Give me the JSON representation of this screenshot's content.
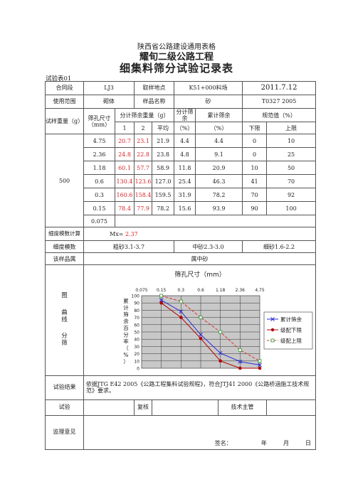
{
  "header": {
    "line1": "陕西省公路建设通用表格",
    "line2": "耀旬二级公路工程",
    "title": "细集料筛分试验记录表",
    "form_no": "试验表01"
  },
  "info": {
    "section_label": "合同段",
    "section_value": "LJ3",
    "location_label": "取样地点",
    "location_value": "K51+000料场",
    "date": "2011.7.12",
    "usage_label": "使用范围",
    "usage_value": "砌体",
    "sample_label": "样品名称",
    "sample_value": "砂",
    "standard": "T0327 2005"
  },
  "table_head": {
    "weight": "试样重量（g）",
    "sieve": "筛孔尺寸（mm）",
    "residue": "分计筛余重量（g）",
    "col1": "1",
    "col2": "2",
    "avg": "平均",
    "partial": "分计筛余",
    "partial_unit": "（%）",
    "cumulative": "累计筛余",
    "cumulative_unit": "（%）",
    "spec": "规范值（%）",
    "lower": "下限",
    "upper": "上限",
    "weight_value": "500"
  },
  "rows": [
    {
      "sieve": "4.75",
      "r1": "20.7",
      "r2": "23.1",
      "avg": "21.9",
      "partial": "4.4",
      "cum": "4.4",
      "lower": "0",
      "upper": "10"
    },
    {
      "sieve": "2.36",
      "r1": "24.8",
      "r2": "22.8",
      "avg": "23.8",
      "partial": "4.8",
      "cum": "9.1",
      "lower": "0",
      "upper": "25"
    },
    {
      "sieve": "1.18",
      "r1": "60.1",
      "r2": "57.7",
      "avg": "58.9",
      "partial": "11.8",
      "cum": "20.9",
      "lower": "10",
      "upper": "50"
    },
    {
      "sieve": "0.6",
      "r1": "130.4",
      "r2": "123.6",
      "avg": "127.0",
      "partial": "25.4",
      "cum": "46.3",
      "lower": "41",
      "upper": "70"
    },
    {
      "sieve": "0.3",
      "r1": "160.6",
      "r2": "158.4",
      "avg": "159.5",
      "partial": "31.9",
      "cum": "78.2",
      "lower": "70",
      "upper": "92"
    },
    {
      "sieve": "0.15",
      "r1": "78.4",
      "r2": "77.9",
      "avg": "78.2",
      "partial": "15.6",
      "cum": "93.9",
      "lower": "90",
      "upper": "100"
    }
  ],
  "last_sieve": "0.075",
  "fineness": {
    "label": "细度模数计算",
    "prefix": "Mx=",
    "value": "2.37"
  },
  "fineness_class": {
    "label": "细度模数",
    "coarse": "粗砂3.1-3.7",
    "medium": "中砂2.3-3.0",
    "fine": "细砂1.6-2.2"
  },
  "category": {
    "label": "该样品属",
    "value": "属中砂"
  },
  "chart_section_label": [
    "图",
    "曲",
    "线",
    "分",
    "筛"
  ],
  "chart_data": {
    "type": "line",
    "title": "筛孔尺寸（mm）",
    "categories": [
      "0.075",
      "0.15",
      "0.3",
      "0.6",
      "1.18",
      "2.36",
      "4.75"
    ],
    "ylabel": "累计筛余百分率（%）",
    "ylim": [
      0,
      100
    ],
    "yticks": [
      "100",
      "90",
      "80",
      "70",
      "60",
      "50",
      "40",
      "30",
      "20",
      "10",
      "0"
    ],
    "grid": true,
    "legend_position": "right",
    "series": [
      {
        "name": "累计筛余",
        "color": "#2b2bd6",
        "marker": "x",
        "x": [
          "0.15",
          "0.3",
          "0.6",
          "1.18",
          "2.36",
          "4.75"
        ],
        "values": [
          93.9,
          78.2,
          46.3,
          20.9,
          9.1,
          4.4
        ]
      },
      {
        "name": "级配下限",
        "color": "#b00000",
        "marker": "dot",
        "x": [
          "0.15",
          "0.3",
          "0.6",
          "1.18",
          "2.36",
          "4.75"
        ],
        "values": [
          90,
          70,
          41,
          10,
          0,
          0
        ]
      },
      {
        "name": "级配上限",
        "color": "#e03030",
        "marker": "square-dash",
        "x": [
          "0.15",
          "0.3",
          "0.6",
          "1.18",
          "2.36",
          "4.75"
        ],
        "values": [
          100,
          92,
          70,
          50,
          25,
          10
        ]
      }
    ]
  },
  "result": {
    "label": "试验结果",
    "text": "依据JTG E42 2005《公路工程集料试验规程》，符合JTJ41 2000《公路桥涵施工技术规范》要求。"
  },
  "signatures": {
    "test": "试验",
    "review": "复核",
    "tech": "技术主管"
  },
  "supervision": {
    "label": "监理意见",
    "sign": "签名：",
    "year": "年",
    "month": "月",
    "day": "日"
  }
}
